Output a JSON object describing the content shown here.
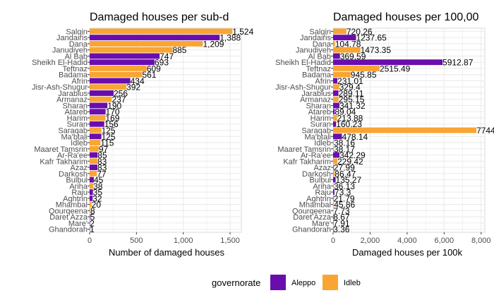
{
  "colors": {
    "Aleppo": "#6a0dad",
    "Idleb": "#f9a533",
    "grid": "#ebebeb",
    "panel_border": "#d9d9d9"
  },
  "legend": {
    "title": "governorate",
    "entries": [
      {
        "label": "Aleppo"
      },
      {
        "label": "Idleb"
      }
    ]
  },
  "chart_data": [
    {
      "type": "bar",
      "orientation": "horizontal",
      "title": "Damaged houses per sub-d",
      "xlabel": "Number of damaged houses",
      "ylabel": "",
      "xlim": [
        0,
        1620
      ],
      "xticks": [
        0,
        500,
        1000,
        1500
      ],
      "xtick_labels": [
        "0",
        "500",
        "1,000",
        "1,500"
      ],
      "grid": true,
      "categories": [
        "Salqin",
        "Jandairis",
        "Dana",
        "Janudiyeh",
        "Al Bab",
        "Sheikh El-Hadid",
        "Teftnaz",
        "Badama",
        "Afrin",
        "Jisr-Ash-Shugur",
        "Jarablus",
        "Armanaz",
        "Sharan",
        "Atareb",
        "Harim",
        "Suran",
        "Saraqab",
        "Ma'btali",
        "Idleb",
        "Maaret Tamsrin",
        "Ar-Ra'ee",
        "Kafr Takharim",
        "Azaz",
        "Darkosh",
        "Bulbul",
        "Ariha",
        "Raju",
        "Aghtrin",
        "Mhambal",
        "Qourqeena",
        "Daret Azza",
        "Mare'",
        "Ghandorah"
      ],
      "governorate": [
        "Idleb",
        "Aleppo",
        "Idleb",
        "Idleb",
        "Aleppo",
        "Aleppo",
        "Idleb",
        "Idleb",
        "Aleppo",
        "Idleb",
        "Aleppo",
        "Idleb",
        "Aleppo",
        "Aleppo",
        "Idleb",
        "Aleppo",
        "Idleb",
        "Aleppo",
        "Idleb",
        "Idleb",
        "Aleppo",
        "Idleb",
        "Aleppo",
        "Idleb",
        "Aleppo",
        "Idleb",
        "Aleppo",
        "Aleppo",
        "Idleb",
        "Idleb",
        "Aleppo",
        "Aleppo",
        "Aleppo"
      ],
      "values": [
        1524,
        1388,
        1209,
        885,
        747,
        693,
        609,
        561,
        434,
        392,
        256,
        237,
        190,
        170,
        169,
        156,
        125,
        125,
        115,
        97,
        85,
        83,
        83,
        77,
        45,
        38,
        35,
        32,
        20,
        8,
        5,
        2,
        1
      ],
      "labels": [
        "1,524",
        "1,388",
        "1,209",
        "885",
        "747",
        "693",
        "609",
        "561",
        "434",
        "392",
        "256",
        "237",
        "190",
        "170",
        "169",
        "156",
        "125",
        "125",
        "115",
        "97",
        "85",
        "83",
        "83",
        "77",
        "45",
        "38",
        "35",
        "32",
        "20",
        "8",
        "5",
        "2",
        "1"
      ]
    },
    {
      "type": "bar",
      "orientation": "horizontal",
      "title": "Damaged houses per 100,00",
      "xlabel": "Damaged houses per 100k",
      "ylabel": "",
      "xlim": [
        0,
        8200
      ],
      "xticks": [
        0,
        2000,
        4000,
        6000,
        8000
      ],
      "xtick_labels": [
        "0",
        "2,000",
        "4,000",
        "6,000",
        "8,000"
      ],
      "grid": true,
      "categories": [
        "Salqin",
        "Jandairis",
        "Dana",
        "Janudiyeh",
        "Al Bab",
        "Sheikh El-Hadid",
        "Teftnaz",
        "Badama",
        "Afrin",
        "Jisr-Ash-Shugur",
        "Jarablus",
        "Armanaz",
        "Sharan",
        "Atareb",
        "Harim",
        "Suran",
        "Saraqab",
        "Ma'btali",
        "Idleb",
        "Maaret Tamsrin",
        "Ar-Ra'ee",
        "Kafr Takharim",
        "Azaz",
        "Darkosh",
        "Bulbul",
        "Ariha",
        "Raju",
        "Aghtrin",
        "Mhambal",
        "Qourqeena",
        "Daret Azza",
        "Mare'",
        "Ghandorah"
      ],
      "governorate": [
        "Idleb",
        "Aleppo",
        "Idleb",
        "Idleb",
        "Aleppo",
        "Aleppo",
        "Idleb",
        "Idleb",
        "Aleppo",
        "Idleb",
        "Aleppo",
        "Idleb",
        "Aleppo",
        "Aleppo",
        "Idleb",
        "Aleppo",
        "Idleb",
        "Aleppo",
        "Idleb",
        "Idleb",
        "Aleppo",
        "Idleb",
        "Aleppo",
        "Idleb",
        "Aleppo",
        "Idleb",
        "Aleppo",
        "Aleppo",
        "Idleb",
        "Idleb",
        "Aleppo",
        "Aleppo",
        "Aleppo"
      ],
      "values": [
        720.26,
        1237.65,
        104.78,
        1473.35,
        369.59,
        5912.87,
        2515.49,
        945.85,
        231.01,
        329.4,
        289.11,
        295.15,
        341.32,
        89.04,
        213.88,
        160.23,
        7744.73,
        478.14,
        38.16,
        38.17,
        342.29,
        229.42,
        27.99,
        86.47,
        135.27,
        36.13,
        73.3,
        21.79,
        45.86,
        7.73,
        8.67,
        7.91,
        3.36
      ],
      "labels": [
        "720.26",
        "1237.65",
        "104.78",
        "1473.35",
        "369.59",
        "5912.87",
        "2515.49",
        "945.85",
        "231.01",
        "329.4",
        "289.11",
        "295.15",
        "341.32",
        "89.04",
        "213.88",
        "160.23",
        "7744.73",
        "478.14",
        "38.16",
        "38.17",
        "342.29",
        "229.42",
        "27.99",
        "86.47",
        "135.27",
        "36.13",
        "73.3",
        "21.79",
        "45.86",
        "7.73",
        "8.67",
        "7.91",
        "3.36"
      ]
    }
  ]
}
